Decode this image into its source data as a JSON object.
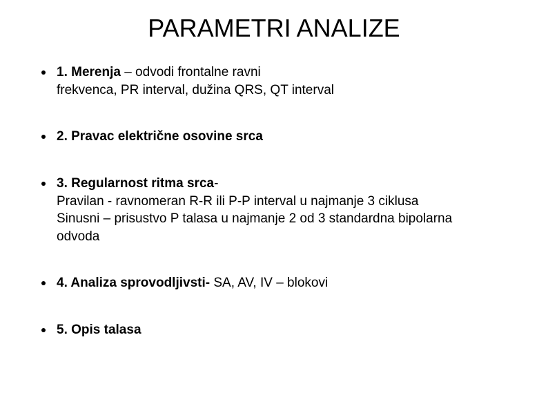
{
  "title": "PARAMETRI ANALIZE",
  "title_fontsize": 36,
  "body_fontsize": 19,
  "background_color": "#ffffff",
  "text_color": "#000000",
  "bullet_color": "#000000",
  "items": [
    {
      "bold_prefix": "1. Merenja",
      "rest_line1": " – odvodi frontalne ravni",
      "line2": "frekvenca, PR interval,  dužina QRS, QT interval",
      "line3": "",
      "line4": ""
    },
    {
      "bold_prefix": "2. Pravac električne osovine srca",
      "rest_line1": "",
      "line2": "",
      "line3": "",
      "line4": ""
    },
    {
      "bold_prefix": "3. Regularnost ritma srca",
      "rest_line1": "-",
      "line2": "Pravilan - ravnomeran  R-R ili P-P interval u najmanje 3 ciklusa",
      "line3": "Sinusni – prisustvo P talasa u najmanje 2 od 3 standardna bipolarna",
      "line4": "odvoda"
    },
    {
      "bold_prefix": "4. Analiza sprovodljivsti-",
      "rest_line1": " SA, AV, IV – blokovi",
      "line2": "",
      "line3": "",
      "line4": ""
    },
    {
      "bold_prefix": "5. Opis talasa",
      "rest_line1": "",
      "line2": "",
      "line3": "",
      "line4": ""
    }
  ]
}
